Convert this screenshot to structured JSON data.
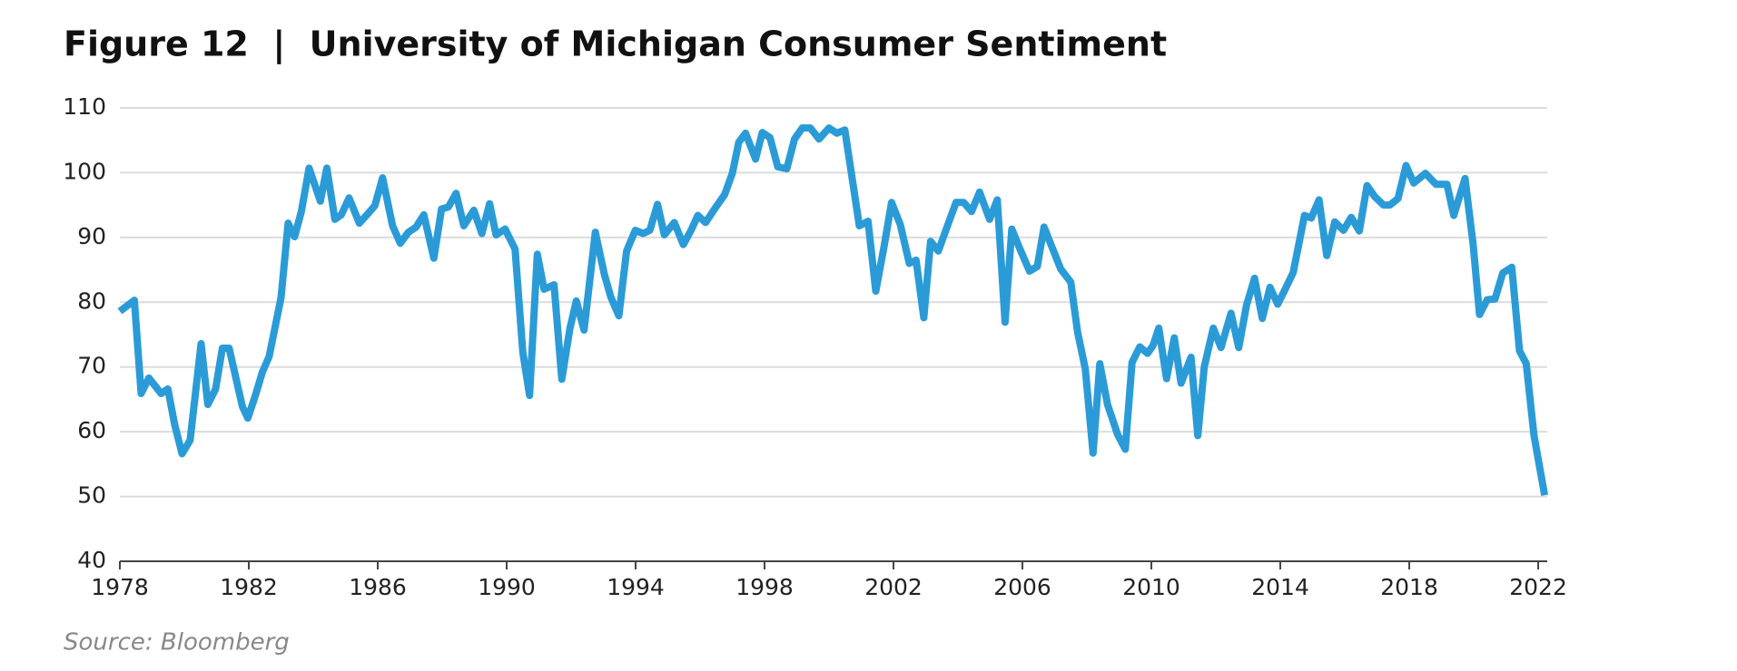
{
  "chart_data": {
    "type": "line",
    "title": "Figure 12  |  University of Michigan Consumer Sentiment",
    "source": "Source: Bloomberg",
    "color": "#2b9bd8",
    "grid": true,
    "xlim": [
      1978,
      2022.28
    ],
    "xticks": [
      1978,
      1982,
      1986,
      1990,
      1994,
      1998,
      2002,
      2006,
      2010,
      2014,
      2018,
      2022
    ],
    "ylim": [
      40,
      110
    ],
    "yticks": [
      40,
      50,
      60,
      70,
      80,
      90,
      100,
      110
    ],
    "x": [
      1978.0,
      1978.45,
      1978.66,
      1978.9,
      1979.28,
      1979.49,
      1979.7,
      1979.93,
      1980.18,
      1980.52,
      1980.73,
      1980.97,
      1981.18,
      1981.39,
      1981.8,
      1981.97,
      1982.21,
      1982.42,
      1982.63,
      1983.0,
      1983.22,
      1983.42,
      1983.63,
      1983.87,
      1984.22,
      1984.42,
      1984.67,
      1984.87,
      1985.11,
      1985.43,
      1985.7,
      1985.91,
      1986.15,
      1986.46,
      1986.7,
      1986.95,
      1987.19,
      1987.43,
      1987.74,
      1987.98,
      1988.19,
      1988.43,
      1988.67,
      1988.98,
      1989.23,
      1989.47,
      1989.67,
      1989.95,
      1990.26,
      1990.5,
      1990.71,
      1990.95,
      1991.16,
      1991.47,
      1991.71,
      1991.96,
      1992.16,
      1992.4,
      1992.75,
      1993.03,
      1993.23,
      1993.48,
      1993.72,
      1993.99,
      1994.23,
      1994.44,
      1994.68,
      1994.89,
      1995.2,
      1995.48,
      1995.72,
      1995.93,
      1996.17,
      1996.45,
      1996.76,
      1997.0,
      1997.2,
      1997.41,
      1997.72,
      1997.93,
      1998.17,
      1998.41,
      1998.69,
      1998.93,
      1999.17,
      1999.42,
      1999.69,
      2000.0,
      2000.24,
      2000.49,
      2000.73,
      2000.94,
      2001.21,
      2001.45,
      2001.7,
      2001.94,
      2002.21,
      2002.49,
      2002.7,
      2002.94,
      2003.15,
      2003.39,
      2003.66,
      2003.94,
      2004.18,
      2004.42,
      2004.67,
      2004.98,
      2005.22,
      2005.46,
      2005.67,
      2005.94,
      2006.22,
      2006.46,
      2006.67,
      2006.91,
      2007.19,
      2007.5,
      2007.71,
      2007.95,
      2008.19,
      2008.4,
      2008.64,
      2008.95,
      2009.19,
      2009.4,
      2009.64,
      2009.88,
      2010.05,
      2010.23,
      2010.47,
      2010.71,
      2010.92,
      2011.23,
      2011.44,
      2011.64,
      2011.92,
      2012.16,
      2012.47,
      2012.71,
      2012.95,
      2013.2,
      2013.44,
      2013.68,
      2013.92,
      2014.17,
      2014.4,
      2014.75,
      2014.96,
      2015.2,
      2015.44,
      2015.69,
      2015.96,
      2016.2,
      2016.45,
      2016.69,
      2016.93,
      2017.2,
      2017.4,
      2017.65,
      2017.9,
      2018.14,
      2018.5,
      2018.83,
      2019.17,
      2019.38,
      2019.73,
      2019.98,
      2020.18,
      2020.42,
      2020.66,
      2020.9,
      2021.18,
      2021.42,
      2021.63,
      2021.87,
      2022.2
    ],
    "values": [
      78.6,
      80.3,
      65.9,
      68.3,
      65.9,
      66.6,
      61.1,
      56.6,
      58.7,
      73.6,
      64.2,
      66.6,
      72.9,
      72.9,
      63.9,
      62.1,
      65.7,
      69.2,
      71.6,
      80.7,
      92.2,
      90.1,
      94.0,
      100.7,
      95.6,
      100.7,
      92.8,
      93.5,
      96.1,
      92.2,
      93.7,
      94.9,
      99.2,
      91.8,
      89.1,
      90.8,
      91.6,
      93.5,
      86.8,
      94.4,
      94.7,
      96.8,
      91.8,
      94.2,
      90.6,
      95.2,
      90.4,
      91.3,
      88.2,
      72.3,
      65.6,
      87.4,
      82.0,
      82.7,
      68.1,
      75.9,
      80.2,
      75.7,
      90.8,
      84.3,
      80.8,
      77.9,
      87.9,
      91.1,
      90.6,
      91.1,
      95.1,
      90.4,
      92.3,
      88.9,
      91.1,
      93.4,
      92.3,
      94.4,
      96.6,
      99.9,
      104.7,
      106.1,
      102.1,
      106.2,
      105.4,
      100.9,
      100.6,
      105.2,
      106.9,
      106.9,
      105.2,
      106.9,
      106.1,
      106.6,
      98.7,
      91.8,
      92.5,
      81.7,
      88.4,
      95.4,
      92.0,
      86.0,
      86.5,
      77.6,
      89.4,
      87.9,
      91.6,
      95.4,
      95.4,
      94.0,
      97.0,
      92.8,
      95.8,
      76.9,
      91.3,
      88.0,
      84.8,
      85.5,
      91.6,
      88.6,
      85.1,
      83.1,
      75.4,
      69.7,
      56.7,
      70.5,
      64.2,
      59.6,
      57.3,
      70.7,
      73.1,
      72.1,
      73.3,
      76.0,
      68.2,
      74.5,
      67.5,
      71.5,
      59.4,
      70.0,
      76.0,
      73.0,
      78.3,
      73.0,
      79.5,
      83.7,
      77.5,
      82.3,
      79.7,
      82.2,
      84.6,
      93.4,
      93.0,
      95.8,
      87.2,
      92.4,
      91.1,
      93.1,
      91.0,
      98.0,
      96.3,
      95.0,
      95.0,
      96.0,
      101.1,
      98.4,
      99.9,
      98.2,
      98.2,
      93.4,
      99.1,
      89.0,
      78.1,
      80.4,
      80.5,
      84.5,
      85.4,
      72.5,
      70.5,
      59.4,
      50.2
    ]
  }
}
